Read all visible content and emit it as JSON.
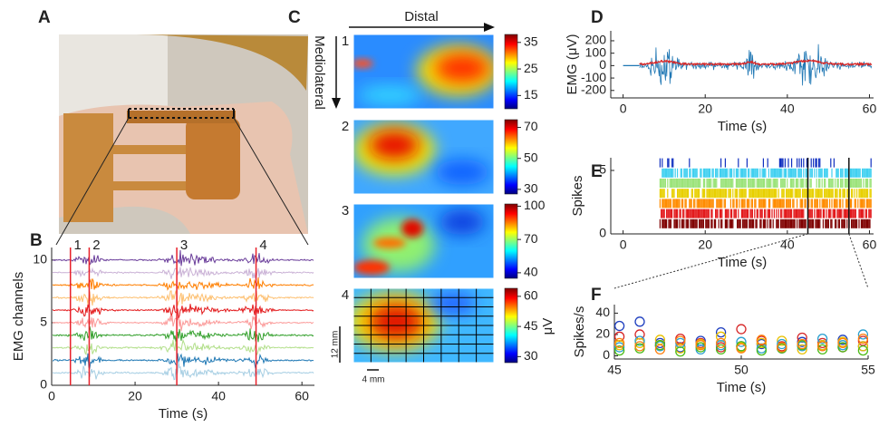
{
  "panels": {
    "A": {
      "label": "A"
    },
    "B": {
      "label": "B",
      "ylabel": "EMG channels",
      "xlabel": "Time (s)",
      "xlim": [
        0,
        63
      ],
      "ylim": [
        0,
        11
      ],
      "xticks": [
        0,
        20,
        40,
        60
      ],
      "yticks": [
        0,
        5,
        10
      ],
      "markers": [
        {
          "label": "1",
          "x": 4.5
        },
        {
          "label": "2",
          "x": 9
        },
        {
          "label": "3",
          "x": 30
        },
        {
          "label": "4",
          "x": 49
        }
      ],
      "colors": [
        "#a6cee3",
        "#1f78b4",
        "#b2df8a",
        "#33a02c",
        "#fb9a99",
        "#e31a1c",
        "#fdbf6f",
        "#ff7f00",
        "#cab2d6",
        "#6a3d9a"
      ]
    },
    "C": {
      "label": "C",
      "top_label": "Distal",
      "side_label": "Mediolateral",
      "unit": "μV",
      "scale_y": "12 mm",
      "scale_x": "4 mm",
      "maps": [
        {
          "label": "1",
          "clim": [
            10,
            38
          ],
          "ticks": [
            15,
            25,
            35
          ]
        },
        {
          "label": "2",
          "clim": [
            27,
            75
          ],
          "ticks": [
            30,
            50,
            70
          ]
        },
        {
          "label": "3",
          "clim": [
            35,
            102
          ],
          "ticks": [
            40,
            70,
            100
          ]
        },
        {
          "label": "4",
          "clim": [
            27,
            64
          ],
          "ticks": [
            30,
            45,
            60
          ]
        }
      ]
    },
    "D": {
      "label": "D",
      "ylabel": "EMG (μV)",
      "xlabel": "Time (s)",
      "xlim": [
        -3,
        61
      ],
      "ylim": [
        -260,
        280
      ],
      "xticks": [
        0,
        20,
        40,
        60
      ],
      "yticks": [
        -200,
        -100,
        0,
        100,
        200
      ],
      "color": "#1f77b4",
      "envelope_color": "#d62728"
    },
    "E": {
      "label": "E",
      "ylabel": "Spikes",
      "xlabel": "Time (s)",
      "xlim": [
        -3,
        61
      ],
      "ylim": [
        0,
        6
      ],
      "xticks": [
        0,
        20,
        40,
        60
      ],
      "yticks": [
        0,
        5
      ],
      "colors": [
        "#7f0000",
        "#e31a1c",
        "#ff8c00",
        "#e8d000",
        "#9be37a",
        "#40d0f0",
        "#1030c0"
      ]
    },
    "F": {
      "label": "F",
      "ylabel": "Spikes/s",
      "xlabel": "Time (s)",
      "xlim": [
        45,
        55
      ],
      "ylim": [
        -3,
        48
      ],
      "xticks": [
        45,
        50,
        55
      ],
      "yticks": [
        0,
        20,
        40
      ],
      "x": [
        45.2,
        46.0,
        46.8,
        47.6,
        48.4,
        49.2,
        50.0,
        50.8,
        51.6,
        52.4,
        53.2,
        54.0,
        54.8
      ],
      "series": [
        {
          "color": "#1f3fbf",
          "values": [
            28,
            32,
            12,
            8,
            14,
            22,
            9,
            11,
            7,
            13,
            10,
            15,
            9
          ]
        },
        {
          "color": "#d62728",
          "values": [
            18,
            20,
            10,
            16,
            12,
            8,
            25,
            14,
            9,
            17,
            12,
            8,
            14
          ]
        },
        {
          "color": "#e8c000",
          "values": [
            10,
            12,
            15,
            7,
            11,
            18,
            8,
            12,
            14,
            6,
            10,
            13,
            9
          ]
        },
        {
          "color": "#2ca0d0",
          "values": [
            8,
            14,
            9,
            12,
            6,
            10,
            13,
            7,
            11,
            9,
            16,
            10,
            20
          ]
        },
        {
          "color": "#4cbb17",
          "values": [
            5,
            7,
            10,
            4,
            8,
            6,
            9,
            5,
            7,
            10,
            6,
            8,
            5
          ]
        },
        {
          "color": "#ff7f0e",
          "values": [
            12,
            9,
            6,
            14,
            10,
            12,
            7,
            15,
            8,
            11,
            9,
            12,
            16
          ]
        }
      ]
    }
  }
}
